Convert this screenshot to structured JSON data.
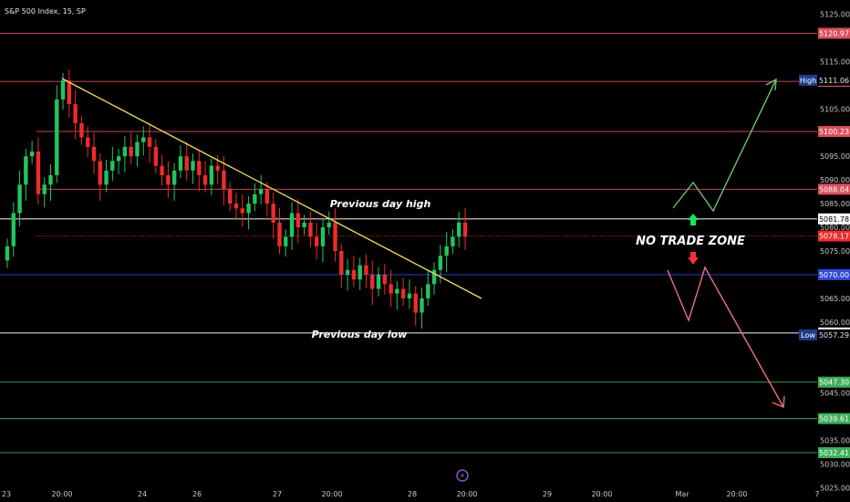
{
  "title": "S&P 500 Index, 15, SP",
  "colors": {
    "background": "#000000",
    "up_candle": "#22c55e",
    "down_candle": "#ef2b2b",
    "resistance_line": "#d9505c",
    "support_line": "#3fae5a",
    "key_line": "#d9d9d9",
    "mid_line": "#2f49d8",
    "trendline": "#f3e35a",
    "bull_path": "#6ec46a",
    "bear_path": "#f06f80"
  },
  "axis": {
    "y_ticks": [
      "5125.00",
      "5115.00",
      "5105.00",
      "5095.00",
      "5090.00",
      "5085.00",
      "5080.00",
      "5075.00",
      "5065.00",
      "5060.00",
      "5045.00",
      "5035.00",
      "5030.00",
      "5025.00"
    ],
    "x_ticks": [
      "23",
      "20:00",
      "24",
      "26",
      "27",
      "20:00",
      "28",
      "20:00",
      "29",
      "20:00",
      "Mar",
      "20:00",
      "7"
    ]
  },
  "chart_data": {
    "type": "line",
    "title": "S&P 500 Index, 15, SP",
    "ylim": [
      5022,
      5128
    ],
    "levels": [
      {
        "label": "5120.97",
        "value": 5120.97,
        "kind": "resistance"
      },
      {
        "label": "5110.82",
        "value": 5110.82,
        "kind": "resistance"
      },
      {
        "label": "5100.23",
        "value": 5100.23,
        "kind": "resistance"
      },
      {
        "label": "5088.04",
        "value": 5088.04,
        "kind": "resistance"
      },
      {
        "label": "5081.78",
        "value": 5081.78,
        "kind": "key"
      },
      {
        "label": "5078.17",
        "value": 5078.17,
        "kind": "last"
      },
      {
        "label": "5070.00",
        "value": 5070.0,
        "kind": "mid"
      },
      {
        "label": "5057.69",
        "value": 5057.69,
        "kind": "key"
      },
      {
        "label": "5047.30",
        "value": 5047.3,
        "kind": "support"
      },
      {
        "label": "5039.61",
        "value": 5039.61,
        "kind": "support"
      },
      {
        "label": "5032.41",
        "value": 5032.41,
        "kind": "support"
      }
    ],
    "high": {
      "label": "High",
      "value": 5111.06
    },
    "low": {
      "label": "Low",
      "value": 5057.29
    },
    "annotations": {
      "prev_high": "Previous day high",
      "prev_low": "Previous day low",
      "zone": "NO TRADE ZONE"
    },
    "closes": [
      5076,
      5083,
      5089,
      5095,
      5096,
      5087,
      5089,
      5091,
      5107,
      5111,
      5106,
      5102,
      5099,
      5097,
      5094,
      5089,
      5092,
      5094,
      5095,
      5097,
      5095,
      5098,
      5099,
      5097,
      5093,
      5091,
      5089,
      5092,
      5095,
      5092,
      5094,
      5091,
      5089,
      5093,
      5092,
      5088,
      5085,
      5084,
      5083,
      5085,
      5087,
      5088,
      5085,
      5081,
      5076,
      5078,
      5083,
      5080,
      5081,
      5078,
      5076,
      5080,
      5081,
      5075,
      5070,
      5071,
      5069,
      5072,
      5070,
      5067,
      5070,
      5068,
      5066,
      5067,
      5065,
      5066,
      5062,
      5065,
      5068,
      5071,
      5074,
      5076,
      5078,
      5081,
      5078
    ]
  }
}
